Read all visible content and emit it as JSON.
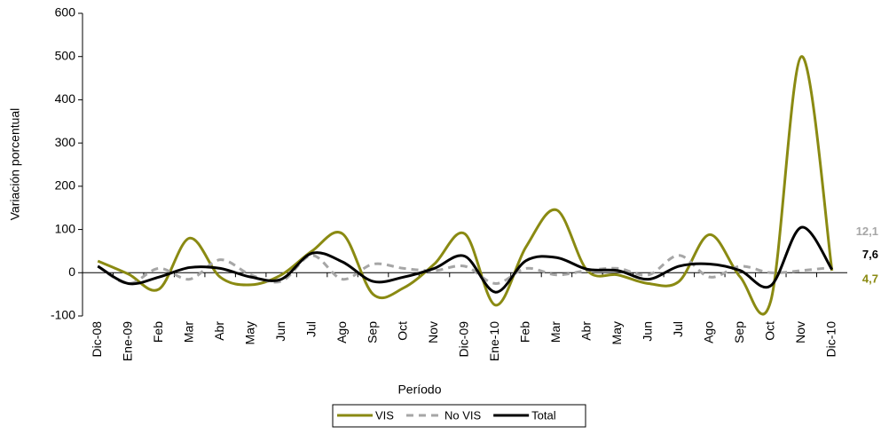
{
  "chart_data": {
    "type": "line",
    "x_label": "Período",
    "y_label": "Variación porcentual",
    "categories": [
      "Dic-08",
      "Ene-09",
      "Feb",
      "Mar",
      "Abr",
      "May",
      "Jun",
      "Jul",
      "Ago",
      "Sep",
      "Oct",
      "Nov",
      "Dic-09",
      "Ene-10",
      "Feb",
      "Mar",
      "Abr",
      "May",
      "Jun",
      "Jul",
      "Ago",
      "Sep",
      "Oct",
      "Nov",
      "Dic-10"
    ],
    "series": [
      {
        "name": "VIS",
        "color": "#8a8a12",
        "dash": false,
        "values": [
          27,
          -3,
          -38,
          80,
          -10,
          -28,
          -5,
          50,
          90,
          -50,
          -35,
          20,
          90,
          -75,
          60,
          145,
          5,
          -5,
          -25,
          -20,
          88,
          -10,
          -65,
          500,
          4.7
        ],
        "value_labels": [
          null,
          null,
          null,
          null,
          null,
          null,
          null,
          null,
          null,
          null,
          null,
          null,
          null,
          null,
          null,
          null,
          null,
          null,
          null,
          null,
          null,
          null,
          null,
          null,
          "4,7"
        ]
      },
      {
        "name": "No VIS",
        "color": "#a6a6a6",
        "dash": true,
        "values": [
          15,
          -25,
          10,
          -15,
          30,
          -5,
          -20,
          40,
          -15,
          20,
          10,
          5,
          15,
          -25,
          10,
          -5,
          5,
          10,
          -5,
          40,
          -10,
          15,
          0,
          5,
          12.1
        ],
        "value_labels": [
          null,
          null,
          null,
          null,
          null,
          null,
          null,
          null,
          null,
          null,
          null,
          null,
          null,
          null,
          null,
          null,
          null,
          null,
          null,
          null,
          null,
          null,
          null,
          null,
          "12,1"
        ]
      },
      {
        "name": "Total",
        "color": "#000000",
        "dash": false,
        "values": [
          15,
          -25,
          -10,
          12,
          10,
          -10,
          -15,
          45,
          25,
          -20,
          -10,
          10,
          38,
          -45,
          28,
          35,
          8,
          5,
          -15,
          15,
          20,
          5,
          -30,
          105,
          7.6
        ],
        "value_labels": [
          null,
          null,
          null,
          null,
          null,
          null,
          null,
          null,
          null,
          null,
          null,
          null,
          null,
          null,
          null,
          null,
          null,
          null,
          null,
          null,
          null,
          null,
          null,
          null,
          "7,6"
        ]
      }
    ],
    "ylim": [
      -100,
      600
    ],
    "yticks": [
      -100,
      0,
      100,
      200,
      300,
      400,
      500,
      600
    ],
    "grid": false
  }
}
